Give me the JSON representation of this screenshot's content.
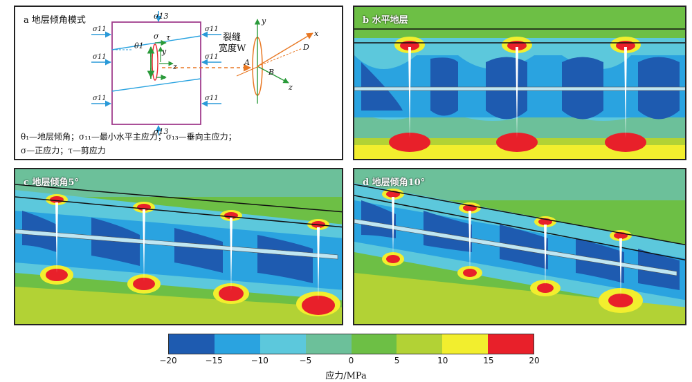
{
  "panels": {
    "a": {
      "label": "a 地层倾角模式",
      "legend_line1": "θ₁—地层倾角；σ₁₁—最小水平主应力；σ₁₃—垂向主应力；",
      "legend_line2": "σ—正应力；τ—剪应力",
      "labels": {
        "sigma13": "σ13",
        "sigma11": "σ11",
        "theta1": "θ1",
        "sigma": "σ",
        "tau": "τ",
        "y": "y",
        "z": "z",
        "x": "x",
        "A": "A",
        "B": "B",
        "D": "D",
        "crack_width_1": "裂缝",
        "crack_width_2": "宽度W"
      }
    },
    "b": {
      "label": "b 水平地层"
    },
    "c": {
      "label": "c 地层倾角5°"
    },
    "d": {
      "label": "d 地层倾角10°"
    }
  },
  "colorbar": {
    "title": "应力/MPa",
    "ticks": [
      "−20",
      "−15",
      "−10",
      "−5",
      "0",
      "5",
      "10",
      "15",
      "20"
    ],
    "colors": [
      "#1e5bb0",
      "#2aa3e0",
      "#5cc8dc",
      "#6cc09a",
      "#6dbf45",
      "#b2d235",
      "#f2ee2e",
      "#e8202a"
    ]
  },
  "colors": {
    "frame_purple": "#a03c8c",
    "arrow_blue": "#2a9ad8",
    "layer_blue": "#2aa3e0",
    "orange": "#e87722",
    "green": "#2a9a3a",
    "red": "#e8202a"
  }
}
